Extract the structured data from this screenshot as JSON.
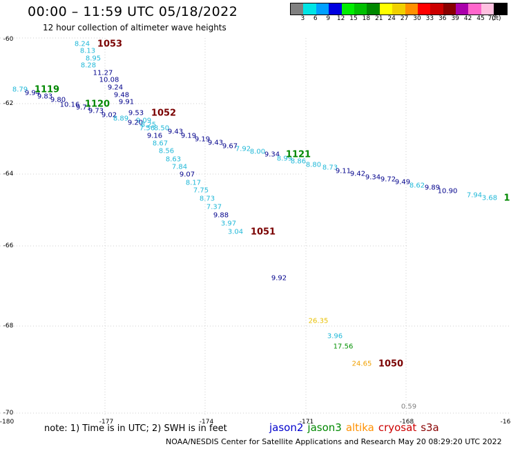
{
  "header": {
    "title": "00:00 – 11:59 UTC 05/18/2022",
    "subtitle": "12 hour collection of altimeter wave heights"
  },
  "colorbar": {
    "ticks": [
      "3",
      "6",
      "9",
      "12",
      "15",
      "18",
      "21",
      "24",
      "27",
      "30",
      "33",
      "36",
      "39",
      "42",
      "45",
      "70"
    ],
    "colors": [
      "#808080",
      "#00e5e5",
      "#00a0ff",
      "#0000e0",
      "#00ee00",
      "#00c000",
      "#008800",
      "#ffff00",
      "#f0d000",
      "#ff9000",
      "#ff0000",
      "#cc0000",
      "#880000",
      "#aa00aa",
      "#ff66cc",
      "#ffc0e0",
      "#000000"
    ],
    "unit": "(ft)"
  },
  "axes": {
    "lat_labels": [
      "-60",
      "-62",
      "-64",
      "-66",
      "-68",
      "-70"
    ],
    "lon_labels": [
      "-180",
      "-177",
      "-174",
      "-171",
      "-168",
      "-16"
    ]
  },
  "stations": [
    {
      "text": "1053",
      "color": "#7a0000"
    },
    {
      "text": "1119",
      "color": "#008800"
    },
    {
      "text": "1120",
      "color": "#008800"
    },
    {
      "text": "1052",
      "color": "#7a0000"
    },
    {
      "text": "1121",
      "color": "#008800"
    },
    {
      "text": "1051",
      "color": "#7a0000"
    },
    {
      "text": "1050",
      "color": "#7a0000"
    },
    {
      "text": "1",
      "color": "#008800"
    }
  ],
  "labels": [
    {
      "t": "8.24",
      "c": "#20b8d8"
    },
    {
      "t": "8.13",
      "c": "#20b8d8"
    },
    {
      "t": "8.95",
      "c": "#20b8d8"
    },
    {
      "t": "8.28",
      "c": "#20b8d8"
    },
    {
      "t": "11.27",
      "c": "#00008b"
    },
    {
      "t": "10.08",
      "c": "#00008b"
    },
    {
      "t": "9.24",
      "c": "#00008b"
    },
    {
      "t": "9.48",
      "c": "#00008b"
    },
    {
      "t": "9.91",
      "c": "#00008b"
    },
    {
      "t": "8.79",
      "c": "#20b8d8"
    },
    {
      "t": "9.94",
      "c": "#00008b"
    },
    {
      "t": "9.83",
      "c": "#00008b"
    },
    {
      "t": "9.80",
      "c": "#00008b"
    },
    {
      "t": "10.16",
      "c": "#00008b"
    },
    {
      "t": "9.71",
      "c": "#00008b"
    },
    {
      "t": "9.73",
      "c": "#00008b"
    },
    {
      "t": "9.02",
      "c": "#00008b"
    },
    {
      "t": "9.53",
      "c": "#00008b"
    },
    {
      "t": "8.89",
      "c": "#20b8d8"
    },
    {
      "t": "9.09",
      "c": "#20b8d8"
    },
    {
      "t": "9.20",
      "c": "#00008b"
    },
    {
      "t": "8.25",
      "c": "#20b8d8"
    },
    {
      "t": "7.56",
      "c": "#20b8d8"
    },
    {
      "t": "8.50",
      "c": "#20b8d8"
    },
    {
      "t": "9.43",
      "c": "#00008b"
    },
    {
      "t": "9.19",
      "c": "#00008b"
    },
    {
      "t": "9.16",
      "c": "#00008b"
    },
    {
      "t": "9.19",
      "c": "#00008b"
    },
    {
      "t": "9.43",
      "c": "#00008b"
    },
    {
      "t": "9.67",
      "c": "#00008b"
    },
    {
      "t": "7.92",
      "c": "#20b8d8"
    },
    {
      "t": "8.00",
      "c": "#20b8d8"
    },
    {
      "t": "8.67",
      "c": "#20b8d8"
    },
    {
      "t": "8.56",
      "c": "#20b8d8"
    },
    {
      "t": "9.34",
      "c": "#00008b"
    },
    {
      "t": "8.99",
      "c": "#20b8d8"
    },
    {
      "t": "8.86",
      "c": "#20b8d8"
    },
    {
      "t": "8.80",
      "c": "#20b8d8"
    },
    {
      "t": "8.73",
      "c": "#20b8d8"
    },
    {
      "t": "8.63",
      "c": "#20b8d8"
    },
    {
      "t": "7.84",
      "c": "#20b8d8"
    },
    {
      "t": "9.07",
      "c": "#00008b"
    },
    {
      "t": "9.11",
      "c": "#00008b"
    },
    {
      "t": "9.42",
      "c": "#00008b"
    },
    {
      "t": "9.34",
      "c": "#00008b"
    },
    {
      "t": "9.72",
      "c": "#00008b"
    },
    {
      "t": "9.49",
      "c": "#00008b"
    },
    {
      "t": "8.62",
      "c": "#20b8d8"
    },
    {
      "t": "9.89",
      "c": "#00008b"
    },
    {
      "t": "10.90",
      "c": "#00008b"
    },
    {
      "t": "7.94",
      "c": "#20b8d8"
    },
    {
      "t": "3.68",
      "c": "#20b8d8"
    },
    {
      "t": "8.17",
      "c": "#20b8d8"
    },
    {
      "t": "7.75",
      "c": "#20b8d8"
    },
    {
      "t": "8.73",
      "c": "#20b8d8"
    },
    {
      "t": "7.37",
      "c": "#20b8d8"
    },
    {
      "t": "9.88",
      "c": "#00008b"
    },
    {
      "t": "3.97",
      "c": "#20b8d8"
    },
    {
      "t": "3.04",
      "c": "#20b8d8"
    },
    {
      "t": "9.92",
      "c": "#00008b"
    },
    {
      "t": "26.35",
      "c": "#e8c000"
    },
    {
      "t": "3.96",
      "c": "#20b8d8"
    },
    {
      "t": "17.56",
      "c": "#009000"
    },
    {
      "t": "24.65",
      "c": "#f0a000"
    },
    {
      "t": "0.59",
      "c": "#808080"
    }
  ],
  "note": "note: 1) Time is in UTC; 2) SWH is in feet",
  "legend": [
    {
      "text": "jason2",
      "color": "#0000cc"
    },
    {
      "text": "jason3",
      "color": "#008800"
    },
    {
      "text": "altika",
      "color": "#ff9000"
    },
    {
      "text": "cryosat",
      "color": "#cc0000"
    },
    {
      "text": "s3a",
      "color": "#880000"
    }
  ],
  "footer": "NOAA/NESDIS Center for Satellite Applications and Research    May 20 08:29:20 UTC 2022"
}
